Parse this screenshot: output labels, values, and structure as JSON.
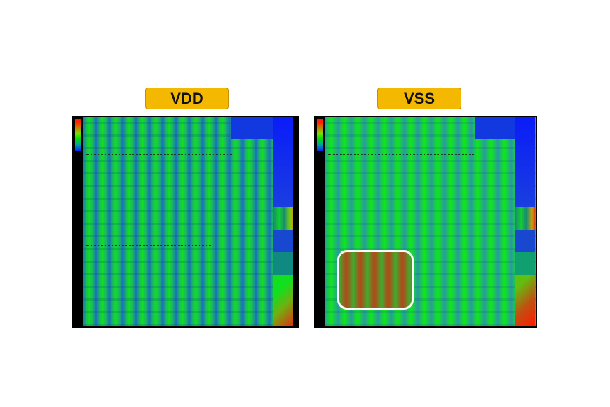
{
  "panels": [
    {
      "label": "VDD",
      "highlight": false
    },
    {
      "label": "VSS",
      "highlight": true
    }
  ],
  "colors": {
    "badge": "#f5b800",
    "low": "#0020ff",
    "mid": "#00e000",
    "high": "#ff1a00",
    "highlight_box": "#ffffff"
  }
}
